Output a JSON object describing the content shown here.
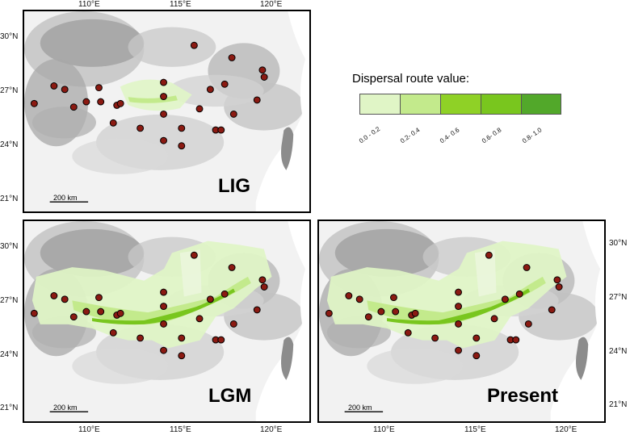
{
  "lon_ticks": [
    "110°E",
    "115°E",
    "120°E"
  ],
  "lat_ticks": [
    "30°N",
    "27°N",
    "24°N",
    "21°N"
  ],
  "legend": {
    "title": "Dispersal route value:",
    "classes": [
      {
        "label": "0.0 - 0.2",
        "color": "#e0f5c6"
      },
      {
        "label": "0.2- 0.4",
        "color": "#c3ea8c"
      },
      {
        "label": "0.4- 0.6",
        "color": "#8fd126"
      },
      {
        "label": "0.6- 0.8",
        "color": "#79c61e"
      },
      {
        "label": "0.8- 1.0",
        "color": "#52a82a"
      }
    ]
  },
  "panels": [
    {
      "key": "lig",
      "label": "LIG",
      "scale_bar": "200 km"
    },
    {
      "key": "lgm",
      "label": "LGM",
      "scale_bar": "200 km"
    },
    {
      "key": "present",
      "label": "Present",
      "scale_bar": "200 km"
    }
  ],
  "sample_sites": [
    {
      "lon": 107.0,
      "lat": 26.3
    },
    {
      "lon": 108.1,
      "lat": 27.3
    },
    {
      "lon": 108.7,
      "lat": 27.1
    },
    {
      "lon": 109.2,
      "lat": 26.1
    },
    {
      "lon": 109.9,
      "lat": 26.4
    },
    {
      "lon": 110.6,
      "lat": 27.2
    },
    {
      "lon": 110.7,
      "lat": 26.4
    },
    {
      "lon": 111.4,
      "lat": 25.2
    },
    {
      "lon": 111.6,
      "lat": 26.2
    },
    {
      "lon": 111.8,
      "lat": 26.3
    },
    {
      "lon": 112.9,
      "lat": 24.9
    },
    {
      "lon": 114.2,
      "lat": 27.5
    },
    {
      "lon": 114.2,
      "lat": 26.7
    },
    {
      "lon": 114.2,
      "lat": 25.7
    },
    {
      "lon": 114.2,
      "lat": 24.2
    },
    {
      "lon": 115.2,
      "lat": 23.9
    },
    {
      "lon": 115.2,
      "lat": 24.9
    },
    {
      "lon": 115.9,
      "lat": 29.6
    },
    {
      "lon": 116.2,
      "lat": 26.0
    },
    {
      "lon": 116.8,
      "lat": 27.1
    },
    {
      "lon": 117.1,
      "lat": 24.8
    },
    {
      "lon": 117.4,
      "lat": 24.8
    },
    {
      "lon": 117.6,
      "lat": 27.4
    },
    {
      "lon": 118.0,
      "lat": 28.9
    },
    {
      "lon": 118.1,
      "lat": 25.7
    },
    {
      "lon": 119.4,
      "lat": 26.5
    },
    {
      "lon": 119.7,
      "lat": 28.2
    },
    {
      "lon": 119.8,
      "lat": 27.8
    }
  ]
}
